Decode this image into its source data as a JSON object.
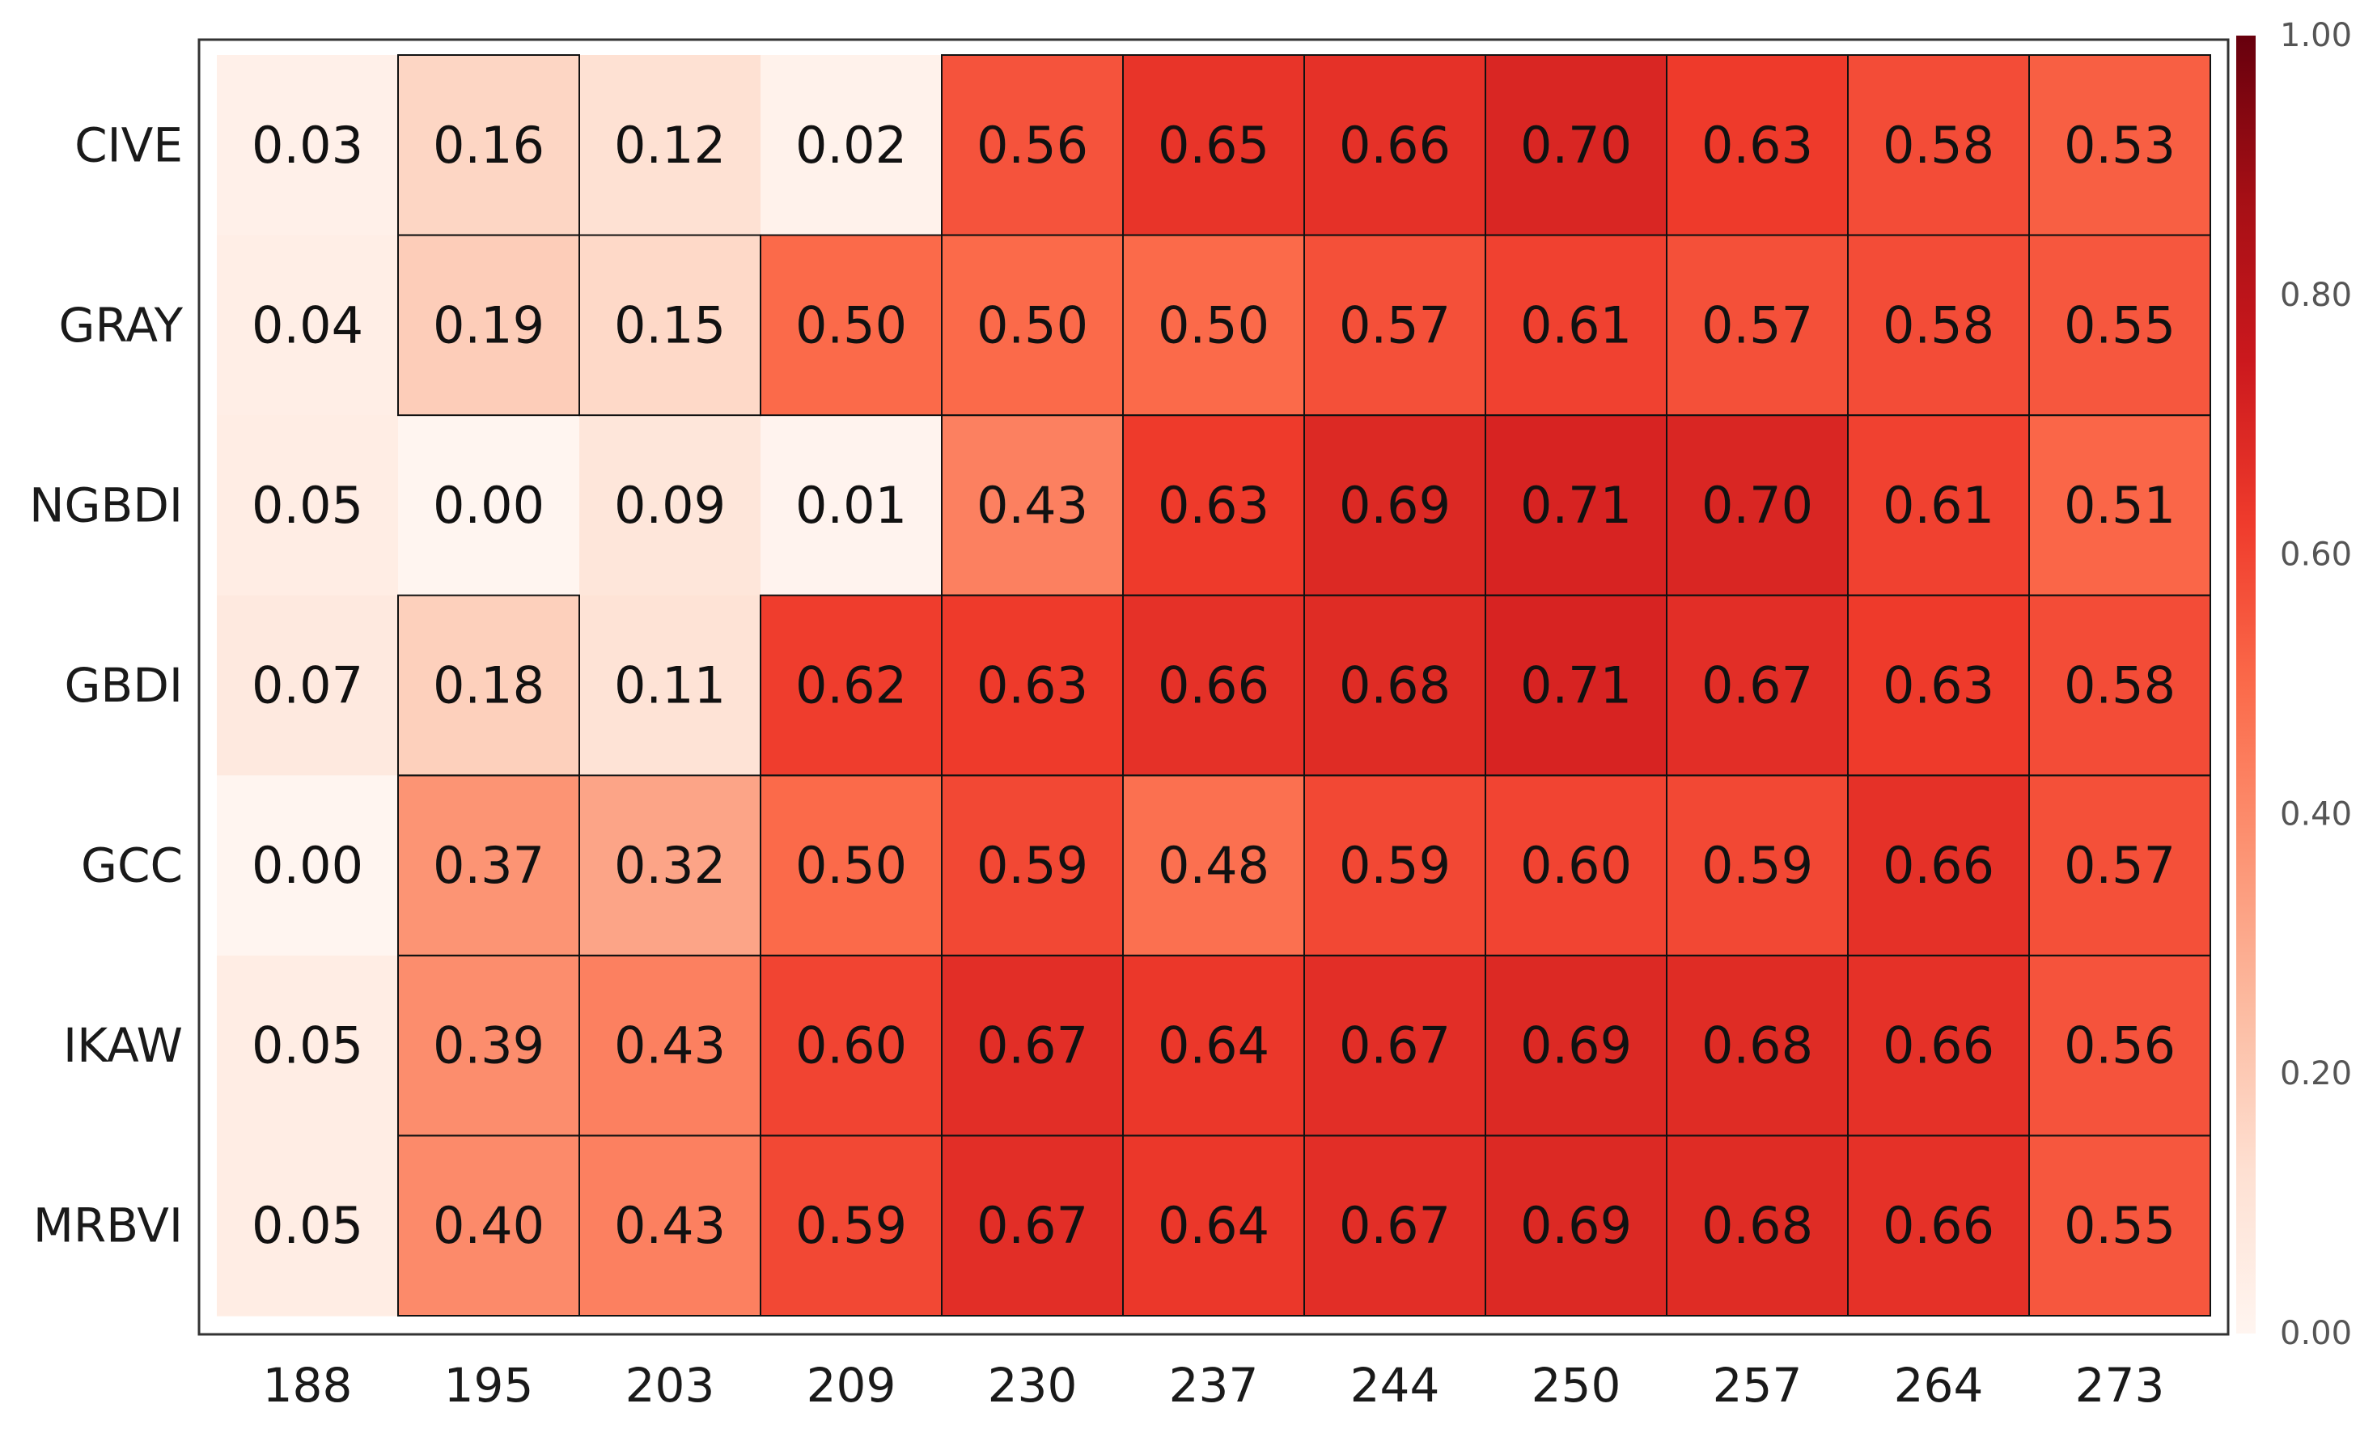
{
  "chart_data": {
    "type": "heatmap",
    "title": "",
    "xlabel": "",
    "ylabel": "",
    "rows": [
      "CIVE",
      "GRAY",
      "NGBDI",
      "GBDI",
      "GCC",
      "IKAW",
      "MRBVI"
    ],
    "columns": [
      "188",
      "195",
      "203",
      "209",
      "230",
      "237",
      "244",
      "250",
      "257",
      "264",
      "273"
    ],
    "values": [
      [
        0.03,
        0.16,
        0.12,
        0.02,
        0.56,
        0.65,
        0.66,
        0.7,
        0.63,
        0.58,
        0.53
      ],
      [
        0.04,
        0.19,
        0.15,
        0.5,
        0.5,
        0.5,
        0.57,
        0.61,
        0.57,
        0.58,
        0.55
      ],
      [
        0.05,
        0.0,
        0.09,
        0.01,
        0.43,
        0.63,
        0.69,
        0.71,
        0.7,
        0.61,
        0.51
      ],
      [
        0.07,
        0.18,
        0.11,
        0.62,
        0.63,
        0.66,
        0.68,
        0.71,
        0.67,
        0.63,
        0.58
      ],
      [
        0.0,
        0.37,
        0.32,
        0.5,
        0.59,
        0.48,
        0.59,
        0.6,
        0.59,
        0.66,
        0.57
      ],
      [
        0.05,
        0.39,
        0.43,
        0.6,
        0.67,
        0.64,
        0.67,
        0.69,
        0.68,
        0.66,
        0.56
      ],
      [
        0.05,
        0.4,
        0.43,
        0.59,
        0.67,
        0.64,
        0.67,
        0.69,
        0.68,
        0.66,
        0.55
      ]
    ],
    "value_labels": [
      [
        "0.03",
        "0.16",
        "0.12",
        "0.02",
        "0.56",
        "0.65",
        "0.66",
        "0.70",
        "0.63",
        "0.58",
        "0.53"
      ],
      [
        "0.04",
        "0.19",
        "0.15",
        "0.50",
        "0.50",
        "0.50",
        "0.57",
        "0.61",
        "0.57",
        "0.58",
        "0.55"
      ],
      [
        "0.05",
        "0.00",
        "0.09",
        "0.01",
        "0.43",
        "0.63",
        "0.69",
        "0.71",
        "0.70",
        "0.61",
        "0.51"
      ],
      [
        "0.07",
        "0.18",
        "0.11",
        "0.62",
        "0.63",
        "0.66",
        "0.68",
        "0.71",
        "0.67",
        "0.63",
        "0.58"
      ],
      [
        "0.00",
        "0.37",
        "0.32",
        "0.50",
        "0.59",
        "0.48",
        "0.59",
        "0.60",
        "0.59",
        "0.66",
        "0.57"
      ],
      [
        "0.05",
        "0.39",
        "0.43",
        "0.60",
        "0.67",
        "0.64",
        "0.67",
        "0.69",
        "0.68",
        "0.66",
        "0.56"
      ],
      [
        "0.05",
        "0.40",
        "0.43",
        "0.59",
        "0.67",
        "0.64",
        "0.67",
        "0.69",
        "0.68",
        "0.66",
        "0.55"
      ]
    ],
    "color_scale": {
      "min": 0.0,
      "max": 1.0,
      "ticks": [
        "0.00",
        "0.20",
        "0.40",
        "0.60",
        "0.80",
        "1.00"
      ],
      "colors": [
        "#fff5f0",
        "#fee0d2",
        "#fcbba1",
        "#fc9272",
        "#fb6a4a",
        "#ef3b2c",
        "#cb181d",
        "#a50f15",
        "#67000d"
      ]
    },
    "colorbar_placement": "right",
    "grid": true
  }
}
